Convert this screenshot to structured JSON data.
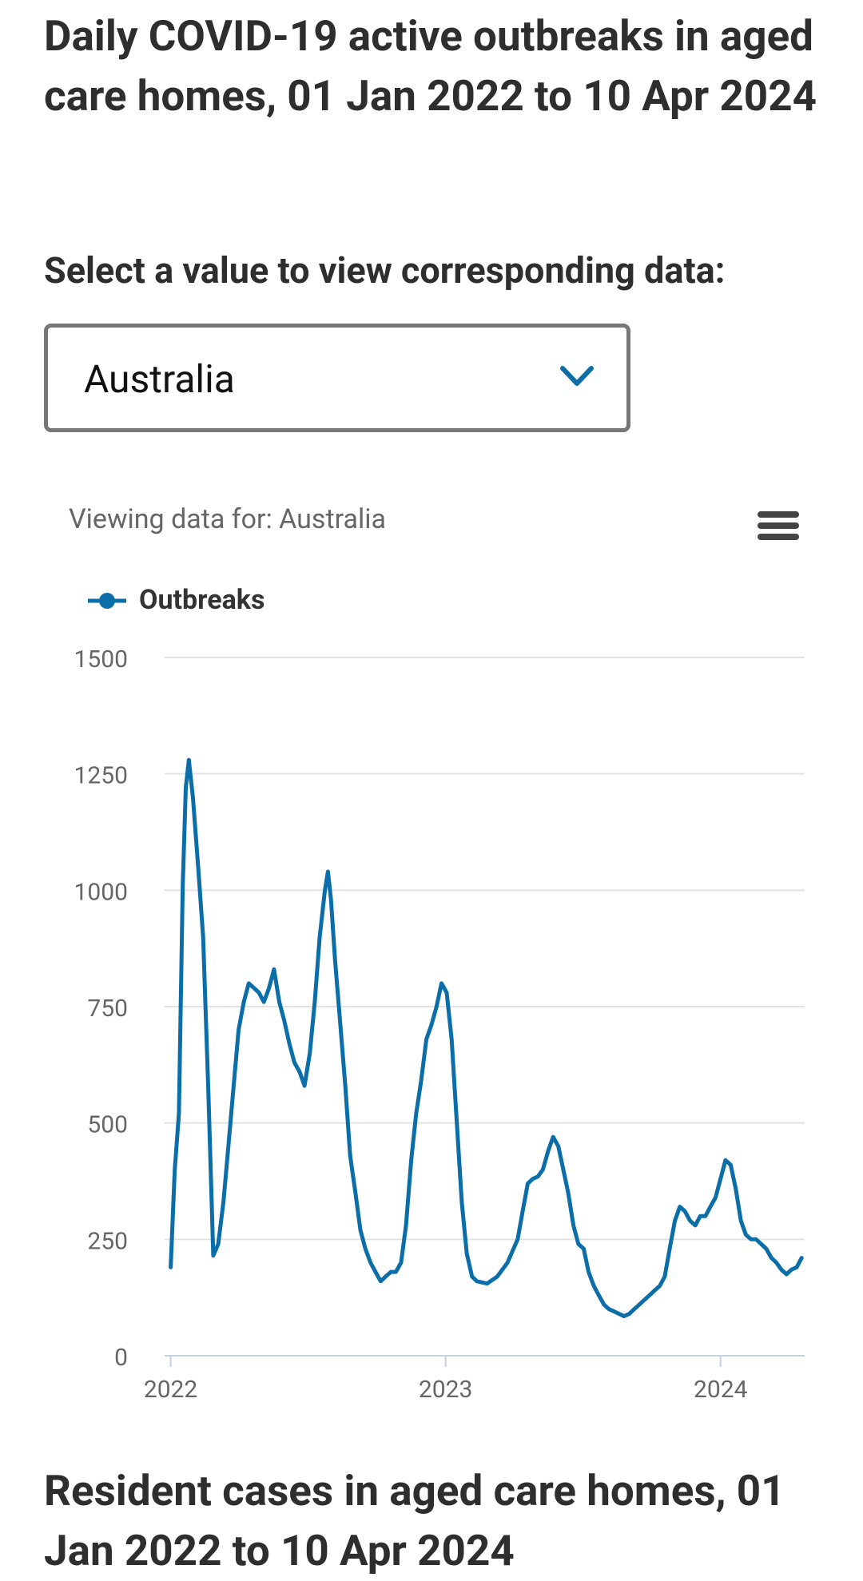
{
  "header": {
    "title": "Daily COVID-19 active outbreaks in aged care homes, 01 Jan 2022 to 10 Apr 2024"
  },
  "selector": {
    "label": "Select a value to view corresponding data:",
    "value": "Australia"
  },
  "chart_data": {
    "type": "line",
    "subtitle": "Viewing data for: Australia",
    "x": [
      2022,
      2022.015,
      2022.03,
      2022.044,
      2022.055,
      2022.066,
      2022.081,
      2022.1,
      2022.118,
      2022.137,
      2022.155,
      2022.173,
      2022.192,
      2022.21,
      2022.229,
      2022.247,
      2022.266,
      2022.284,
      2022.303,
      2022.321,
      2022.339,
      2022.358,
      2022.376,
      2022.395,
      2022.413,
      2022.432,
      2022.45,
      2022.469,
      2022.487,
      2022.506,
      2022.524,
      2022.542,
      2022.561,
      2022.572,
      2022.583,
      2022.598,
      2022.616,
      2022.635,
      2022.653,
      2022.672,
      2022.69,
      2022.708,
      2022.727,
      2022.745,
      2022.764,
      2022.782,
      2022.801,
      2022.819,
      2022.838,
      2022.856,
      2022.875,
      2022.893,
      2022.911,
      2022.93,
      2022.948,
      2022.967,
      2022.985,
      2023.004,
      2023.022,
      2023.041,
      2023.059,
      2023.077,
      2023.096,
      2023.114,
      2023.151,
      2023.188,
      2023.225,
      2023.262,
      2023.28,
      2023.299,
      2023.317,
      2023.336,
      2023.354,
      2023.373,
      2023.391,
      2023.41,
      2023.428,
      2023.446,
      2023.465,
      2023.483,
      2023.502,
      2023.52,
      2023.539,
      2023.557,
      2023.576,
      2023.594,
      2023.613,
      2023.631,
      2023.649,
      2023.668,
      2023.686,
      2023.705,
      2023.723,
      2023.742,
      2023.76,
      2023.779,
      2023.797,
      2023.815,
      2023.834,
      2023.852,
      2023.871,
      2023.889,
      2023.908,
      2023.926,
      2023.945,
      2023.963,
      2023.982,
      2024.0,
      2024.018,
      2024.037,
      2024.055,
      2024.074,
      2024.092,
      2024.111,
      2024.129,
      2024.148,
      2024.166,
      2024.185,
      2024.203,
      2024.221,
      2024.24,
      2024.258,
      2024.277,
      2024.295
    ],
    "series": [
      {
        "name": "Outbreaks",
        "color": "#0b6ea8",
        "values": [
          190,
          400,
          520,
          1010,
          1220,
          1280,
          1200,
          1050,
          900,
          570,
          215,
          240,
          330,
          450,
          580,
          700,
          760,
          800,
          790,
          780,
          760,
          790,
          830,
          760,
          720,
          670,
          630,
          610,
          580,
          650,
          760,
          900,
          1000,
          1040,
          980,
          850,
          720,
          580,
          430,
          350,
          270,
          230,
          200,
          180,
          160,
          170,
          180,
          180,
          200,
          280,
          420,
          520,
          590,
          680,
          710,
          750,
          800,
          780,
          680,
          500,
          330,
          220,
          170,
          160,
          155,
          170,
          200,
          250,
          310,
          370,
          380,
          385,
          400,
          440,
          470,
          450,
          400,
          350,
          280,
          240,
          230,
          180,
          150,
          130,
          110,
          100,
          95,
          90,
          85,
          90,
          100,
          110,
          120,
          130,
          140,
          150,
          170,
          230,
          290,
          320,
          310,
          290,
          280,
          300,
          300,
          320,
          340,
          380,
          420,
          410,
          360,
          290,
          260,
          250,
          250,
          240,
          230,
          210,
          200,
          185,
          175,
          185,
          190,
          210
        ]
      }
    ],
    "xlim": [
      2021.978,
      2024.306
    ],
    "xticks": [
      2022,
      2023,
      2024
    ],
    "ylim": [
      0,
      1500
    ],
    "yticks": [
      0,
      250,
      500,
      750,
      1000,
      1250,
      1500
    ],
    "grid": true
  },
  "next_section": {
    "title": "Resident cases in aged care homes, 01 Jan 2022 to 10 Apr 2024"
  }
}
